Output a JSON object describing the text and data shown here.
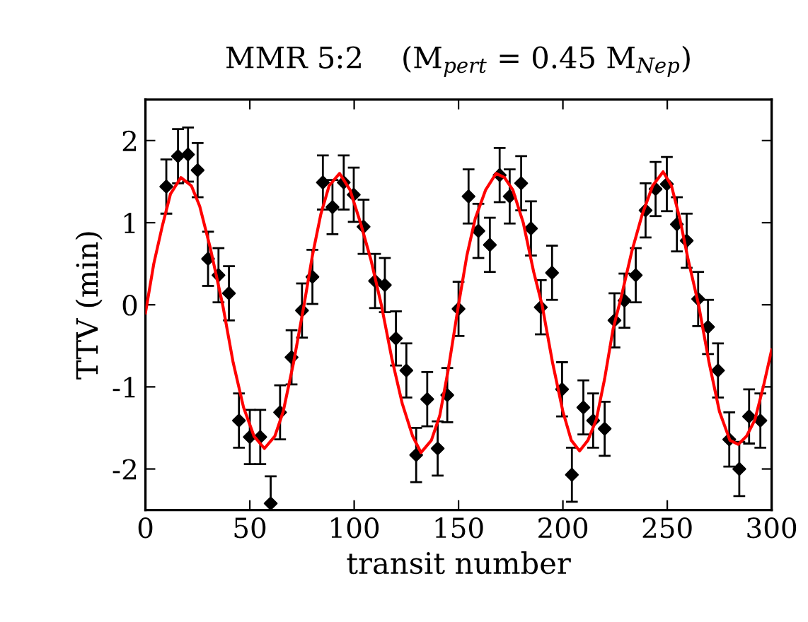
{
  "chart_data": {
    "type": "scatter",
    "title": "MMR 5:2    (M$_{pert}$ = 0.45 M$_{Nep}$)",
    "xlabel": "transit number",
    "ylabel": "TTV (min)",
    "xlim": [
      0,
      300
    ],
    "xticks": [
      0,
      50,
      100,
      150,
      200,
      250,
      300
    ],
    "ylim": [
      -2.5,
      2.5
    ],
    "yticks": [
      -2,
      -1,
      0,
      1,
      2
    ],
    "grid": false,
    "legend": false,
    "series": [
      {
        "color": "#000000",
        "marker": "diamond",
        "x": [
          10,
          15.6,
          20.4,
          25,
          30,
          35,
          40,
          44.8,
          50,
          55,
          60,
          64.5,
          70,
          75,
          80,
          85,
          89.6,
          95,
          99.8,
          104.5,
          110,
          114.7,
          120,
          125,
          129.7,
          135,
          140,
          144.6,
          150,
          154.8,
          159.5,
          165,
          169.7,
          174.5,
          180,
          184.7,
          189.4,
          194.8,
          199.6,
          204.3,
          209.8,
          214.5,
          220,
          224.7,
          229.5,
          234.9,
          239.6,
          244.4,
          249.8,
          254.6,
          259.3,
          264.8,
          269.5,
          274.3,
          279.7,
          284.5,
          289.2,
          294.6
        ],
        "values": [
          1.44,
          1.81,
          1.83,
          1.64,
          0.56,
          0.36,
          0.14,
          -1.41,
          -1.61,
          -1.61,
          -2.42,
          -1.31,
          -0.64,
          -0.07,
          0.34,
          1.49,
          1.19,
          1.49,
          1.34,
          0.95,
          0.29,
          0.24,
          -0.41,
          -0.8,
          -1.83,
          -1.15,
          -1.75,
          -1.1,
          -0.05,
          1.32,
          0.9,
          0.73,
          1.58,
          1.32,
          1.48,
          0.93,
          -0.03,
          0.39,
          -1.03,
          -2.07,
          -1.25,
          -1.41,
          -1.51,
          -0.19,
          0.05,
          0.36,
          1.15,
          1.41,
          1.47,
          0.98,
          0.78,
          0.07,
          -0.27,
          -0.8,
          -1.64,
          -2.0,
          -1.36,
          -1.41
        ],
        "errors": [
          0.33,
          0.33,
          0.33,
          0.33,
          0.33,
          0.33,
          0.33,
          0.33,
          0.33,
          0.33,
          0.33,
          0.33,
          0.33,
          0.33,
          0.33,
          0.33,
          0.33,
          0.33,
          0.33,
          0.33,
          0.33,
          0.33,
          0.33,
          0.33,
          0.33,
          0.33,
          0.33,
          0.33,
          0.33,
          0.33,
          0.33,
          0.33,
          0.33,
          0.33,
          0.33,
          0.33,
          0.33,
          0.33,
          0.33,
          0.33,
          0.33,
          0.33,
          0.33,
          0.33,
          0.33,
          0.33,
          0.33,
          0.33,
          0.33,
          0.33,
          0.33,
          0.33,
          0.33,
          0.33,
          0.33,
          0.33,
          0.33,
          0.33
        ]
      },
      {
        "type": "line",
        "color": "#ff0000",
        "line_style": "solid",
        "x": [
          0,
          4,
          8,
          12,
          17,
          22,
          26,
          31,
          37,
          42,
          47,
          52,
          57,
          62,
          66,
          71,
          76,
          80,
          84,
          88,
          93,
          98,
          103,
          108,
          113,
          118,
          123,
          128,
          132,
          137,
          141,
          145,
          150,
          154,
          158,
          163,
          168,
          172,
          176,
          181,
          186,
          190,
          195,
          200,
          204,
          208,
          212,
          216,
          220,
          224,
          228,
          233,
          238,
          243,
          248,
          252,
          256,
          260,
          265,
          270,
          275,
          280,
          284,
          288,
          292,
          296,
          300
        ],
        "values": [
          -0.1,
          0.5,
          0.95,
          1.35,
          1.55,
          1.45,
          1.2,
          0.7,
          0,
          -0.7,
          -1.25,
          -1.6,
          -1.75,
          -1.6,
          -1.3,
          -0.7,
          0,
          0.6,
          1.1,
          1.45,
          1.6,
          1.4,
          1.0,
          0.55,
          0,
          -0.65,
          -1.2,
          -1.6,
          -1.8,
          -1.65,
          -1.35,
          -0.8,
          0,
          0.6,
          1.05,
          1.4,
          1.6,
          1.55,
          1.4,
          1.0,
          0.4,
          0,
          -0.7,
          -1.3,
          -1.65,
          -1.78,
          -1.65,
          -1.4,
          -0.9,
          -0.3,
          0.1,
          0.65,
          1.1,
          1.45,
          1.62,
          1.45,
          1.05,
          0.55,
          0,
          -0.7,
          -1.3,
          -1.65,
          -1.7,
          -1.6,
          -1.4,
          -1.0,
          -0.55
        ]
      }
    ]
  }
}
